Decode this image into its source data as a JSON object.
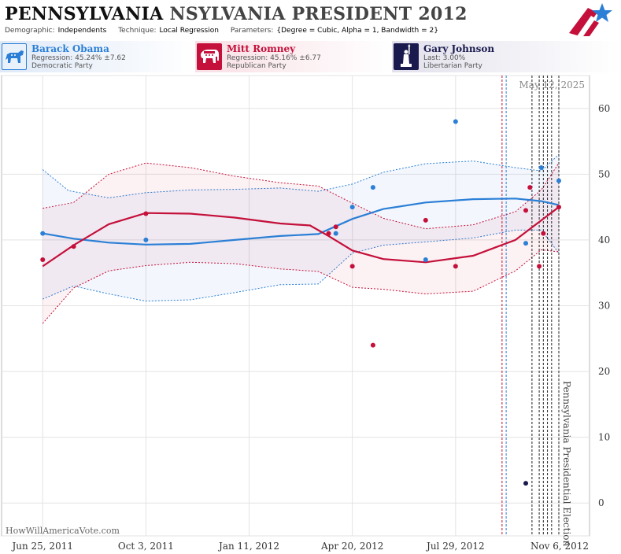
{
  "title": {
    "part1": "PENNSYLVANIA",
    "part2": "NSYLVANIA PRESIDENT 2012"
  },
  "params": [
    {
      "key": "Demographic:",
      "value": "Independents"
    },
    {
      "key": "Technique:",
      "value": "Local Regression"
    },
    {
      "key": "Parameters:",
      "value": "{Degree = Cubic, Alpha = 1, Bandwidth = 2}"
    }
  ],
  "candidates": {
    "obama": {
      "name": "Barack Obama",
      "stat": "Regression: 45.24% ±7.62",
      "party": "Democratic Party",
      "icon": "donkey-icon"
    },
    "romney": {
      "name": "Mitt Romney",
      "stat": "Regression: 45.16% ±6.77",
      "party": "Republican Party",
      "icon": "elephant-icon"
    },
    "johnson": {
      "name": "Gary Johnson",
      "stat": "Last: 3.00%",
      "party": "Libertarian Party",
      "icon": "statue-of-liberty-icon"
    }
  },
  "watermark": "HowWillAmericaVote.com",
  "colors": {
    "obama": "#2b7fd6",
    "romney": "#c4103a",
    "johnson": "#1a1a4e"
  },
  "chart_data": {
    "type": "scatter",
    "date_label": "May 12, 2025",
    "event_label": "Pennsylvania Presidential Election",
    "x_ticks": [
      "Jun 25, 2011",
      "Oct 3, 2011",
      "Jan 11, 2012",
      "Apr 20, 2012",
      "Jul 29, 2012",
      "Nov 6, 2012"
    ],
    "ylim": [
      -5,
      65
    ],
    "y_ticks": [
      0,
      10,
      20,
      30,
      40,
      50,
      60
    ],
    "grid": true,
    "xlim": [
      "2011-06-05",
      "2012-11-06"
    ],
    "vlines": [
      {
        "date": "2012-09-12",
        "color": "romney"
      },
      {
        "date": "2012-09-16",
        "color": "obama"
      },
      {
        "date": "2012-10-11",
        "color": "black"
      },
      {
        "date": "2012-10-18",
        "color": "black"
      },
      {
        "date": "2012-10-22",
        "color": "black"
      },
      {
        "date": "2012-10-26",
        "color": "black"
      },
      {
        "date": "2012-10-30",
        "color": "black"
      },
      {
        "date": "2012-11-06",
        "color": "black"
      }
    ],
    "series": [
      {
        "name": "Barack Obama",
        "color": "obama",
        "points": [
          [
            "2011-06-25",
            41
          ],
          [
            "2011-10-03",
            40
          ],
          [
            "2012-04-04",
            41
          ],
          [
            "2012-04-20",
            45
          ],
          [
            "2012-05-10",
            48
          ],
          [
            "2012-06-30",
            37
          ],
          [
            "2012-07-29",
            58
          ],
          [
            "2012-10-05",
            39.5
          ],
          [
            "2012-10-20",
            51
          ],
          [
            "2012-11-06",
            49
          ]
        ],
        "trend": [
          [
            "2011-06-25",
            41
          ],
          [
            "2011-07-25",
            40.2
          ],
          [
            "2011-08-28",
            39.6
          ],
          [
            "2011-10-03",
            39.3
          ],
          [
            "2011-11-15",
            39.4
          ],
          [
            "2011-12-28",
            40
          ],
          [
            "2012-02-10",
            40.6
          ],
          [
            "2012-03-18",
            40.9
          ],
          [
            "2012-04-20",
            43.2
          ],
          [
            "2012-05-20",
            44.7
          ],
          [
            "2012-06-30",
            45.7
          ],
          [
            "2012-08-15",
            46.2
          ],
          [
            "2012-09-25",
            46.3
          ],
          [
            "2012-10-20",
            45.9
          ],
          [
            "2012-11-06",
            45.3
          ]
        ],
        "band_upper": [
          [
            "2011-06-25",
            50.7
          ],
          [
            "2011-07-20",
            47.5
          ],
          [
            "2011-08-28",
            46.4
          ],
          [
            "2011-10-03",
            47.2
          ],
          [
            "2011-11-15",
            47.6
          ],
          [
            "2011-12-28",
            47.7
          ],
          [
            "2012-02-10",
            47.9
          ],
          [
            "2012-03-18",
            47.4
          ],
          [
            "2012-04-20",
            48.5
          ],
          [
            "2012-05-20",
            50.3
          ],
          [
            "2012-06-30",
            51.6
          ],
          [
            "2012-08-15",
            52
          ],
          [
            "2012-09-25",
            51
          ],
          [
            "2012-10-20",
            50.5
          ],
          [
            "2012-11-06",
            53
          ]
        ],
        "band_lower": [
          [
            "2011-06-25",
            31
          ],
          [
            "2011-07-25",
            33
          ],
          [
            "2011-08-28",
            31.8
          ],
          [
            "2011-10-03",
            30.7
          ],
          [
            "2011-11-15",
            30.9
          ],
          [
            "2011-12-28",
            32
          ],
          [
            "2012-02-10",
            33.2
          ],
          [
            "2012-03-18",
            33.3
          ],
          [
            "2012-04-20",
            38
          ],
          [
            "2012-05-20",
            39.2
          ],
          [
            "2012-06-30",
            39.7
          ],
          [
            "2012-08-15",
            40.3
          ],
          [
            "2012-09-25",
            41.5
          ],
          [
            "2012-10-20",
            41.5
          ],
          [
            "2012-11-06",
            38
          ]
        ]
      },
      {
        "name": "Mitt Romney",
        "color": "romney",
        "points": [
          [
            "2011-06-25",
            37
          ],
          [
            "2011-07-25",
            39
          ],
          [
            "2011-10-03",
            44
          ],
          [
            "2012-03-28",
            41
          ],
          [
            "2012-04-04",
            42
          ],
          [
            "2012-04-20",
            36
          ],
          [
            "2012-05-10",
            24
          ],
          [
            "2012-06-30",
            43
          ],
          [
            "2012-07-29",
            36
          ],
          [
            "2012-10-05",
            44.5
          ],
          [
            "2012-10-09",
            48
          ],
          [
            "2012-10-18",
            36
          ],
          [
            "2012-10-22",
            41
          ],
          [
            "2012-11-06",
            45
          ]
        ],
        "trend": [
          [
            "2011-06-25",
            36
          ],
          [
            "2011-07-25",
            39.2
          ],
          [
            "2011-08-28",
            42.4
          ],
          [
            "2011-10-03",
            44.1
          ],
          [
            "2011-11-15",
            44
          ],
          [
            "2011-12-28",
            43.4
          ],
          [
            "2012-02-10",
            42.5
          ],
          [
            "2012-03-10",
            42.2
          ],
          [
            "2012-03-28",
            40.6
          ],
          [
            "2012-04-20",
            38.4
          ],
          [
            "2012-05-20",
            37.1
          ],
          [
            "2012-06-30",
            36.6
          ],
          [
            "2012-08-15",
            37.6
          ],
          [
            "2012-09-25",
            40
          ],
          [
            "2012-11-06",
            45
          ]
        ],
        "band_upper": [
          [
            "2011-06-25",
            44.8
          ],
          [
            "2011-07-25",
            45.7
          ],
          [
            "2011-08-28",
            50
          ],
          [
            "2011-10-03",
            51.7
          ],
          [
            "2011-11-15",
            51
          ],
          [
            "2011-12-28",
            49.7
          ],
          [
            "2012-02-10",
            48.7
          ],
          [
            "2012-03-18",
            48.2
          ],
          [
            "2012-04-20",
            45.6
          ],
          [
            "2012-05-20",
            43.3
          ],
          [
            "2012-06-30",
            41.7
          ],
          [
            "2012-08-15",
            42.3
          ],
          [
            "2012-09-25",
            44.3
          ],
          [
            "2012-10-20",
            47.6
          ],
          [
            "2012-11-06",
            51.7
          ]
        ],
        "band_lower": [
          [
            "2011-06-25",
            27.3
          ],
          [
            "2011-07-25",
            32.7
          ],
          [
            "2011-08-28",
            35.3
          ],
          [
            "2011-10-03",
            36.1
          ],
          [
            "2011-11-15",
            36.6
          ],
          [
            "2011-12-28",
            36.4
          ],
          [
            "2012-02-10",
            35.6
          ],
          [
            "2012-03-18",
            35.2
          ],
          [
            "2012-04-20",
            32.8
          ],
          [
            "2012-05-20",
            32.5
          ],
          [
            "2012-06-30",
            31.8
          ],
          [
            "2012-08-15",
            32.2
          ],
          [
            "2012-09-25",
            35.3
          ],
          [
            "2012-10-20",
            38.5
          ],
          [
            "2012-11-06",
            38.2
          ]
        ]
      },
      {
        "name": "Gary Johnson",
        "color": "johnson",
        "points": [
          [
            "2012-10-05",
            3
          ]
        ]
      }
    ]
  }
}
